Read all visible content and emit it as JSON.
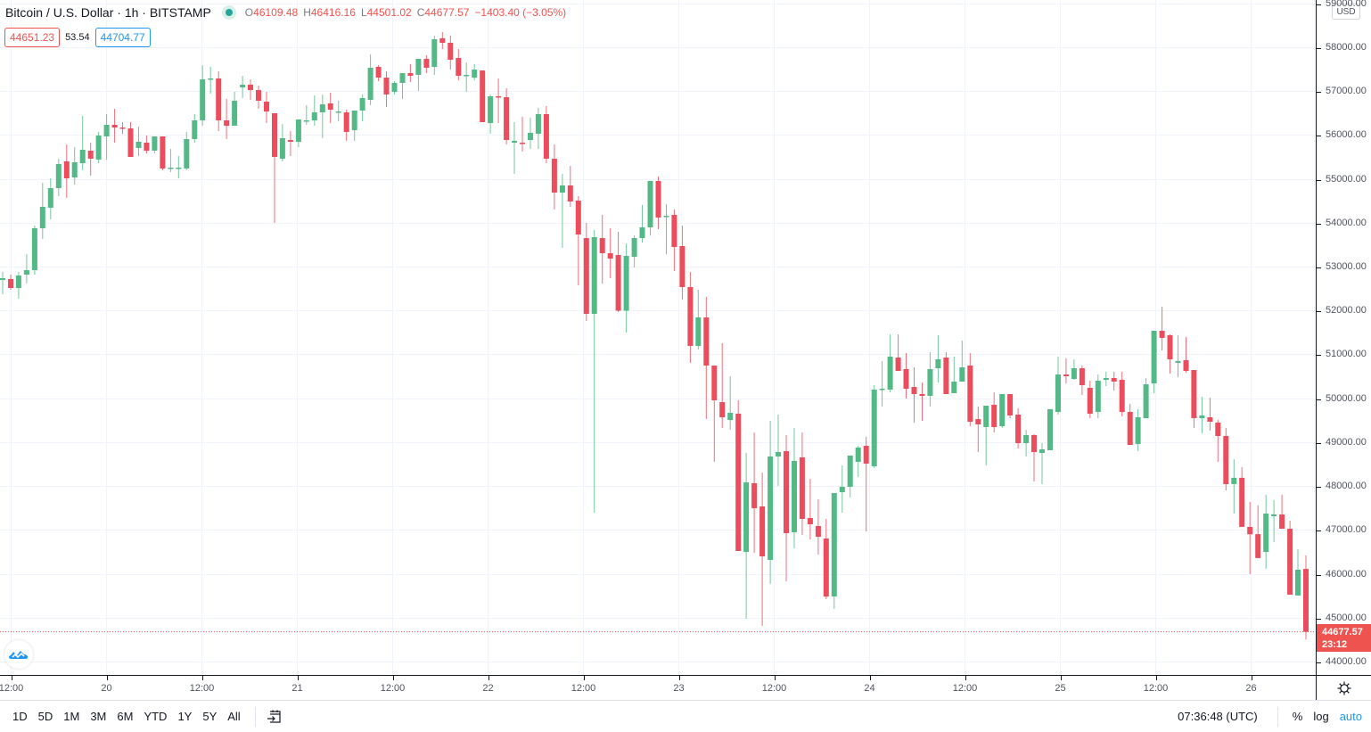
{
  "header": {
    "title": "Bitcoin / U.S. Dollar · 1h · BITSTAMP",
    "status_color": "#26a69a",
    "ohlc": {
      "open_label": "O",
      "open": "46109.48",
      "high_label": "H",
      "high": "46416.16",
      "low_label": "L",
      "low": "44501.02",
      "close_label": "C",
      "close": "44677.57",
      "change": "−1403.40 (−3.05%)"
    },
    "bid": "44651.23",
    "spread": "53.54",
    "ask": "44704.77"
  },
  "price_axis": {
    "currency": "USD",
    "last_price": "44677.57",
    "countdown": "23:12",
    "settings_icon": "gear-icon"
  },
  "time_axis": {
    "labels": [
      "12:00",
      "20",
      "12:00",
      "21",
      "12:00",
      "22",
      "12:00",
      "23",
      "12:00",
      "24",
      "12:00",
      "25",
      "12:00",
      "26"
    ]
  },
  "bottom_bar": {
    "ranges": [
      "1D",
      "5D",
      "1M",
      "3M",
      "6M",
      "YTD",
      "1Y",
      "5Y",
      "All"
    ],
    "goto_icon": "go-to-date-icon",
    "clock": "07:36:48 (UTC)",
    "percent": "%",
    "log": "log",
    "auto": "auto"
  },
  "colors": {
    "up": "#26a69a",
    "up_body": "#53b987",
    "down": "#ef5350",
    "down_body": "#eb4d5c",
    "grid": "#f0f3fa",
    "axis_text": "#50535e",
    "ask_blue": "#2196f3"
  },
  "chart_data": {
    "type": "candlestick",
    "title": "Bitcoin / U.S. Dollar · 1h · BITSTAMP",
    "xlabel": "",
    "ylabel": "USD",
    "ylim": [
      43700,
      59100
    ],
    "y_ticks": [
      44000,
      45000,
      46000,
      47000,
      48000,
      49000,
      50000,
      51000,
      52000,
      53000,
      54000,
      55000,
      56000,
      57000,
      58000,
      59000
    ],
    "x_tick_labels": [
      "12:00",
      "20",
      "12:00",
      "21",
      "12:00",
      "22",
      "12:00",
      "23",
      "12:00",
      "24",
      "12:00",
      "25",
      "12:00",
      "26"
    ],
    "grid": true,
    "interval": "1h",
    "last_price": 44677.57,
    "candles_ohlc": [
      [
        52697,
        52879,
        52371,
        52737
      ],
      [
        52717,
        52818,
        52473,
        52514
      ],
      [
        52514,
        52879,
        52270,
        52798
      ],
      [
        52818,
        53286,
        52615,
        52920
      ],
      [
        52920,
        53936,
        52818,
        53875
      ],
      [
        53875,
        54911,
        53631,
        54363
      ],
      [
        54342,
        55013,
        54078,
        54789
      ],
      [
        54789,
        55460,
        54607,
        55338
      ],
      [
        55399,
        55785,
        54566,
        55013
      ],
      [
        55033,
        55724,
        54871,
        55379
      ],
      [
        55358,
        56435,
        55196,
        55663
      ],
      [
        55643,
        55826,
        55074,
        55460
      ],
      [
        55440,
        56070,
        55358,
        55988
      ],
      [
        55968,
        56476,
        55440,
        56232
      ],
      [
        56232,
        56598,
        55826,
        56171
      ],
      [
        56171,
        56293,
        56029,
        56151
      ],
      [
        56151,
        56293,
        55582,
        55501
      ],
      [
        55704,
        56192,
        55521,
        55846
      ],
      [
        55826,
        55988,
        55582,
        55643
      ],
      [
        55643,
        55968,
        55582,
        55968
      ],
      [
        55968,
        55968,
        55196,
        55237
      ],
      [
        55237,
        55684,
        55155,
        55257
      ],
      [
        55257,
        55521,
        55013,
        55257
      ],
      [
        55237,
        56070,
        55196,
        55907
      ],
      [
        55907,
        56476,
        55826,
        56334
      ],
      [
        56334,
        57594,
        56212,
        57269
      ],
      [
        57269,
        57553,
        56943,
        57289
      ],
      [
        57289,
        57451,
        56090,
        56334
      ],
      [
        56334,
        56822,
        55907,
        56212
      ],
      [
        56212,
        56984,
        56212,
        56781
      ],
      [
        57086,
        57350,
        56842,
        57147
      ],
      [
        57147,
        57269,
        56801,
        57025
      ],
      [
        57025,
        57126,
        56598,
        56781
      ],
      [
        56760,
        56984,
        56273,
        56537
      ],
      [
        56496,
        56496,
        53997,
        55501
      ],
      [
        55460,
        56253,
        55399,
        55927
      ],
      [
        55887,
        56090,
        55521,
        55846
      ],
      [
        55846,
        56354,
        55724,
        56354
      ],
      [
        56334,
        56679,
        56232,
        56334
      ],
      [
        56334,
        56903,
        56212,
        56517
      ],
      [
        56517,
        56923,
        55927,
        56700
      ],
      [
        56720,
        56964,
        56273,
        56578
      ],
      [
        56537,
        56781,
        56313,
        56537
      ],
      [
        56517,
        56578,
        55866,
        56070
      ],
      [
        56110,
        56557,
        55866,
        56557
      ],
      [
        56557,
        56923,
        56313,
        56842
      ],
      [
        56801,
        57837,
        56679,
        57533
      ],
      [
        57553,
        57594,
        57228,
        57309
      ],
      [
        57309,
        57451,
        56639,
        56923
      ],
      [
        56984,
        57228,
        56923,
        57187
      ],
      [
        57187,
        57411,
        56822,
        57411
      ],
      [
        57411,
        57614,
        57208,
        57350
      ],
      [
        57370,
        57736,
        57004,
        57736
      ],
      [
        57736,
        57817,
        57411,
        57533
      ],
      [
        57553,
        58264,
        57370,
        58183
      ],
      [
        58203,
        58345,
        57960,
        58102
      ],
      [
        58102,
        58264,
        57492,
        57716
      ],
      [
        57756,
        57960,
        57248,
        57350
      ],
      [
        57350,
        57655,
        56984,
        57370
      ],
      [
        57309,
        57614,
        57248,
        57492
      ],
      [
        57472,
        57472,
        56293,
        56293
      ],
      [
        56273,
        56923,
        56029,
        56882
      ],
      [
        56882,
        57289,
        56273,
        56862
      ],
      [
        56862,
        57065,
        55785,
        55887
      ],
      [
        55826,
        56293,
        55115,
        55866
      ],
      [
        55826,
        56415,
        55623,
        55806
      ],
      [
        55887,
        56395,
        55684,
        56049
      ],
      [
        56029,
        56618,
        55684,
        56476
      ],
      [
        56476,
        56659,
        55358,
        55460
      ],
      [
        55460,
        55785,
        54302,
        54688
      ],
      [
        54688,
        55115,
        53427,
        54850
      ],
      [
        54850,
        55297,
        54363,
        54485
      ],
      [
        54505,
        54607,
        52574,
        53733
      ],
      [
        53652,
        53997,
        51762,
        51924
      ],
      [
        51924,
        53835,
        47393,
        53672
      ],
      [
        53652,
        54180,
        52615,
        53306
      ],
      [
        53306,
        53875,
        52737,
        53184
      ],
      [
        53266,
        53794,
        51965,
        51996
      ],
      [
        51996,
        53530,
        51498,
        53245
      ],
      [
        53225,
        53713,
        52981,
        53652
      ],
      [
        53652,
        54403,
        53550,
        53896
      ],
      [
        53896,
        54952,
        53713,
        54952
      ],
      [
        54952,
        55054,
        53855,
        54119
      ],
      [
        54139,
        54423,
        53286,
        54160
      ],
      [
        54180,
        54302,
        52900,
        53448
      ],
      [
        53469,
        53936,
        52250,
        52534
      ],
      [
        52534,
        52880,
        50807,
        51193
      ],
      [
        51193,
        52473,
        51111,
        51843
      ],
      [
        51843,
        52311,
        49527,
        50746
      ],
      [
        50746,
        50746,
        48551,
        49953
      ],
      [
        49913,
        51254,
        49323,
        49567
      ],
      [
        49506,
        50502,
        49283,
        49669
      ],
      [
        49649,
        49953,
        46519,
        46519
      ],
      [
        46499,
        48755,
        44975,
        48084
      ],
      [
        48064,
        49222,
        46479,
        47495
      ],
      [
        47535,
        48307,
        44812,
        46397
      ],
      [
        46316,
        49486,
        45768,
        48673
      ],
      [
        48673,
        49628,
        48003,
        48775
      ],
      [
        48795,
        49161,
        45829,
        46926
      ],
      [
        46946,
        49323,
        46580,
        48571
      ],
      [
        48653,
        49222,
        46885,
        47251
      ],
      [
        47271,
        48165,
        46783,
        47129
      ],
      [
        47088,
        47698,
        46438,
        46844
      ],
      [
        46804,
        47251,
        45422,
        45483
      ],
      [
        45483,
        47840,
        45199,
        47840
      ],
      [
        47860,
        48470,
        47393,
        47982
      ],
      [
        47982,
        48612,
        47738,
        48693
      ],
      [
        48551,
        48917,
        48206,
        48876
      ],
      [
        48917,
        49120,
        46963,
        48511
      ],
      [
        48450,
        50299,
        48409,
        50197
      ],
      [
        50197,
        50847,
        49811,
        50217
      ],
      [
        50197,
        51457,
        50136,
        50949
      ],
      [
        50929,
        51457,
        50624,
        50624
      ],
      [
        50664,
        51030,
        49994,
        50217
      ],
      [
        50258,
        50705,
        49445,
        50095
      ],
      [
        50095,
        50360,
        49486,
        50055
      ],
      [
        50055,
        51051,
        49811,
        50664
      ],
      [
        50685,
        51437,
        50360,
        50888
      ],
      [
        50929,
        51051,
        50095,
        50095
      ],
      [
        50116,
        50949,
        50116,
        50380
      ],
      [
        50380,
        51315,
        50380,
        50705
      ],
      [
        50746,
        51030,
        49364,
        49466
      ],
      [
        49527,
        49811,
        48775,
        49405
      ],
      [
        49344,
        49831,
        48470,
        49831
      ],
      [
        49852,
        50136,
        49222,
        49344
      ],
      [
        49364,
        50095,
        49323,
        50095
      ],
      [
        50095,
        50095,
        49547,
        49608
      ],
      [
        49628,
        49770,
        48856,
        48978
      ],
      [
        48978,
        49283,
        48673,
        49161
      ],
      [
        49161,
        49181,
        48104,
        48775
      ],
      [
        48755,
        48978,
        48043,
        48836
      ],
      [
        48816,
        49750,
        48816,
        49750
      ],
      [
        49689,
        50949,
        49628,
        50543
      ],
      [
        50543,
        50908,
        50339,
        50502
      ],
      [
        50441,
        50888,
        50421,
        50685
      ],
      [
        50685,
        50746,
        50075,
        50299
      ],
      [
        50237,
        50400,
        49547,
        49648
      ],
      [
        49689,
        50543,
        49547,
        50400
      ],
      [
        50421,
        50603,
        50278,
        50461
      ],
      [
        50461,
        50603,
        50177,
        50380
      ],
      [
        50421,
        50603,
        49587,
        49689
      ],
      [
        49689,
        49872,
        48998,
        48937
      ],
      [
        48958,
        49750,
        48795,
        49567
      ],
      [
        49547,
        50461,
        49547,
        50319
      ],
      [
        50339,
        51538,
        50116,
        51538
      ],
      [
        51538,
        52087,
        51091,
        51376
      ],
      [
        51437,
        51457,
        50563,
        50888
      ],
      [
        50807,
        51437,
        50482,
        50848
      ],
      [
        50868,
        51396,
        50583,
        50624
      ],
      [
        50644,
        50644,
        49323,
        49547
      ],
      [
        49547,
        50035,
        49201,
        49608
      ],
      [
        49567,
        50015,
        49262,
        49466
      ],
      [
        49445,
        49506,
        48551,
        49140
      ],
      [
        49140,
        49323,
        47901,
        48043
      ],
      [
        48043,
        48612,
        47373,
        48186
      ],
      [
        48186,
        48429,
        47068,
        47068
      ],
      [
        47068,
        47637,
        45991,
        46902
      ],
      [
        46902,
        47556,
        46357,
        46357
      ],
      [
        46499,
        47799,
        46113,
        47373
      ],
      [
        47312,
        47678,
        46722,
        47352
      ],
      [
        47352,
        47799,
        47190,
        47027
      ],
      [
        47027,
        47210,
        45524,
        45524
      ],
      [
        45503,
        46560,
        45503,
        46093
      ],
      [
        46109.48,
        46416.16,
        44501.02,
        44677.57
      ]
    ]
  }
}
